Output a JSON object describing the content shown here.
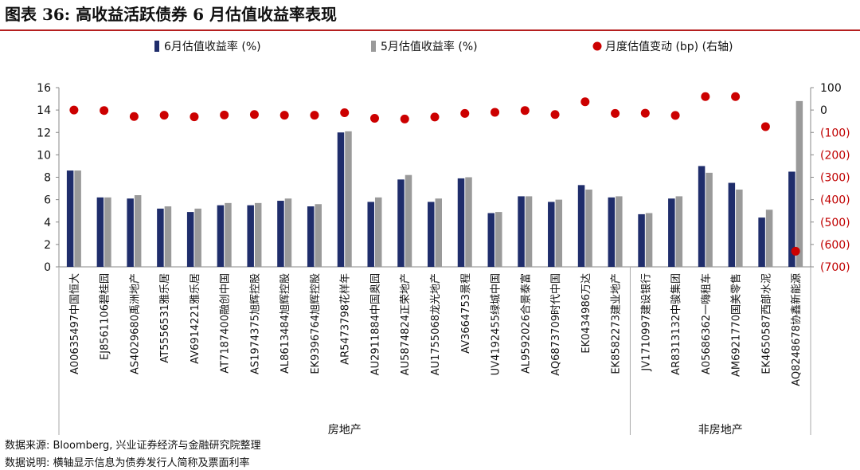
{
  "title": "图表 36: 高收益活跃债券 6 月估值收益率表现",
  "notes": {
    "source": "数据来源: Bloomberg, 兴业证券经济与金融研究院整理",
    "explain": "数据说明: 横轴显示信息为债券发行人简称及票面利率"
  },
  "chart_data": {
    "type": "bar",
    "categories": [
      "A00635497中国恒大",
      "EJ8561106碧桂园",
      "AS4029680禹洲地产",
      "AT5556531雅乐居",
      "AV6914221雅乐居",
      "AT7187400融创中国",
      "AS1974375旭辉控股",
      "AL8613484旭辉控股",
      "EK9396764旭辉控股",
      "AR5473798花样年",
      "AU2911884中国奥园",
      "AU5874824正荣地产",
      "AU1755068龙光地产",
      "AV3664753景程",
      "UV4192455绿城中国",
      "AL9592026合景泰富",
      "AQ6873709时代中国",
      "EK0434986万达",
      "EK8582273建业地产",
      "JV1710997建设银行",
      "AR8313132中骏集团",
      "A05686362一嗨租车",
      "AM6921770国美零售",
      "EK4650587西部水泥",
      "AQ8248678协鑫新能源"
    ],
    "series": [
      {
        "name": "6月估值收益率 (%)",
        "axis": "left",
        "kind": "bar",
        "color": "#1f2d6b",
        "values": [
          8.6,
          6.2,
          6.1,
          5.2,
          4.9,
          5.5,
          5.5,
          5.9,
          5.4,
          12.0,
          5.8,
          7.8,
          5.8,
          7.9,
          4.8,
          6.3,
          5.8,
          7.3,
          6.2,
          4.7,
          6.1,
          9.0,
          7.5,
          4.4,
          8.5
        ]
      },
      {
        "name": "5月估值收益率 (%)",
        "axis": "left",
        "kind": "bar",
        "color": "#9a9a9a",
        "values": [
          8.6,
          6.2,
          6.4,
          5.4,
          5.2,
          5.7,
          5.7,
          6.1,
          5.6,
          12.1,
          6.2,
          8.2,
          6.1,
          8.0,
          4.9,
          6.3,
          6.0,
          6.9,
          6.3,
          4.8,
          6.3,
          8.4,
          6.9,
          5.1,
          14.8
        ]
      },
      {
        "name": "月度估值变动 (bp) (右轴)",
        "axis": "right",
        "kind": "scatter",
        "color": "#cc0000",
        "values": [
          0,
          -2,
          -29,
          -23,
          -30,
          -22,
          -20,
          -23,
          -23,
          -12,
          -37,
          -40,
          -31,
          -15,
          -10,
          -2,
          -20,
          37,
          -15,
          -14,
          -24,
          60,
          60,
          -74,
          -630
        ]
      }
    ],
    "groups": [
      {
        "label": "房地产",
        "count": 19
      },
      {
        "label": "非房地产",
        "count": 6
      }
    ],
    "left_axis": {
      "min": 0,
      "max": 16,
      "step": 2,
      "ticks": [
        "0",
        "2",
        "4",
        "6",
        "8",
        "10",
        "12",
        "14",
        "16"
      ]
    },
    "right_axis": {
      "min": -700,
      "max": 100,
      "step": 100,
      "ticks": [
        "(700)",
        "(600)",
        "(500)",
        "(400)",
        "(300)",
        "(200)",
        "(100)",
        "0",
        "100"
      ]
    },
    "legend_position": "top",
    "grid": false
  }
}
